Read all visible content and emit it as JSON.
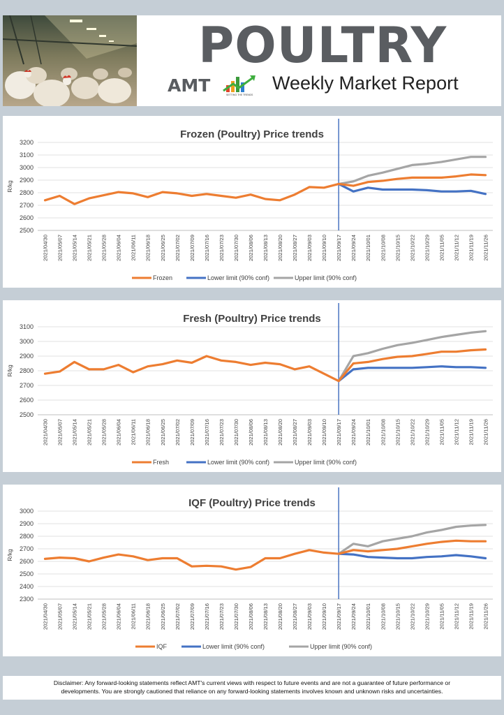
{
  "header": {
    "title": "POULTRY",
    "logo_text": "AMT",
    "logo_tagline": "SETTING THE TRENDS",
    "subtitle": "Weekly Market Report"
  },
  "disclaimer": {
    "line1": "Disclaimer:  Any forward-looking statements reflect AMT's current views with respect to future events and are not a guarantee of future performance or",
    "line2": "developments. You are strongly cautioned that reliance on any forward-looking statements involves known and unknown risks and uncertainties."
  },
  "colors": {
    "actual": "#ed7d31",
    "lower": "#4472c4",
    "upper": "#a5a5a5",
    "marker": "#2e5fb8"
  },
  "chart_data": [
    {
      "type": "line",
      "title": "Frozen (Poultry) Price trends",
      "ylabel": "R/kg",
      "ylim": [
        2500,
        3200
      ],
      "yticks": [
        2500,
        2600,
        2700,
        2800,
        2900,
        3000,
        3100,
        3200
      ],
      "x": [
        "2021/04/30",
        "2021/05/07",
        "2021/05/14",
        "2021/05/21",
        "2021/05/28",
        "2021/06/04",
        "2021/06/11",
        "2021/06/18",
        "2021/06/25",
        "2021/07/02",
        "2021/07/09",
        "2021/07/16",
        "2021/07/23",
        "2021/07/30",
        "2021/08/06",
        "2021/08/13",
        "2021/08/20",
        "2021/08/27",
        "2021/09/03",
        "2021/09/10",
        "2021/09/17",
        "2021/09/24",
        "2021/10/01",
        "2021/10/08",
        "2021/10/15",
        "2021/10/22",
        "2021/10/29",
        "2021/11/05",
        "2021/11/12",
        "2021/11/19",
        "2021/11/26"
      ],
      "forecast_start": "2021/09/17",
      "series": [
        {
          "name": "Frozen",
          "values": [
            2740,
            2775,
            2710,
            2755,
            2780,
            2805,
            2795,
            2765,
            2805,
            2795,
            2775,
            2790,
            2775,
            2760,
            2785,
            2750,
            2740,
            2785,
            2845,
            2840,
            2870,
            2855,
            2885,
            2895,
            2910,
            2920,
            2920,
            2920,
            2930,
            2945,
            2940
          ]
        },
        {
          "name": "Lower limit (90% conf)",
          "values": [
            null,
            null,
            null,
            null,
            null,
            null,
            null,
            null,
            null,
            null,
            null,
            null,
            null,
            null,
            null,
            null,
            null,
            null,
            null,
            null,
            2870,
            2810,
            2840,
            2825,
            2825,
            2825,
            2820,
            2810,
            2810,
            2815,
            2790
          ]
        },
        {
          "name": "Upper limit (90% conf)",
          "values": [
            null,
            null,
            null,
            null,
            null,
            null,
            null,
            null,
            null,
            null,
            null,
            null,
            null,
            null,
            null,
            null,
            null,
            null,
            null,
            null,
            2870,
            2890,
            2935,
            2960,
            2990,
            3020,
            3030,
            3045,
            3065,
            3085,
            3085
          ]
        }
      ]
    },
    {
      "type": "line",
      "title": "Fresh (Poultry) Price trends",
      "ylabel": "R/kg",
      "ylim": [
        2500,
        3100
      ],
      "yticks": [
        2500,
        2600,
        2700,
        2800,
        2900,
        3000,
        3100
      ],
      "x": [
        "2021/04/30",
        "2021/05/07",
        "2021/05/14",
        "2021/05/21",
        "2021/05/28",
        "2021/06/04",
        "2021/06/11",
        "2021/06/18",
        "2021/06/25",
        "2021/07/02",
        "2021/07/09",
        "2021/07/16",
        "2021/07/23",
        "2021/07/30",
        "2021/08/06",
        "2021/08/13",
        "2021/08/20",
        "2021/08/27",
        "2021/09/03",
        "2021/09/10",
        "2021/09/17",
        "2021/09/24",
        "2021/10/01",
        "2021/10/08",
        "2021/10/15",
        "2021/10/22",
        "2021/10/29",
        "2021/11/05",
        "2021/11/12",
        "2021/11/19",
        "2021/11/26"
      ],
      "forecast_start": "2021/09/17",
      "series": [
        {
          "name": "Fresh",
          "values": [
            2780,
            2795,
            2860,
            2810,
            2810,
            2840,
            2790,
            2830,
            2845,
            2870,
            2855,
            2900,
            2870,
            2860,
            2840,
            2855,
            2845,
            2810,
            2830,
            2780,
            2730,
            2850,
            2860,
            2880,
            2895,
            2900,
            2915,
            2930,
            2930,
            2940,
            2945
          ]
        },
        {
          "name": "Lower limit (90% conf)",
          "values": [
            null,
            null,
            null,
            null,
            null,
            null,
            null,
            null,
            null,
            null,
            null,
            null,
            null,
            null,
            null,
            null,
            null,
            null,
            null,
            null,
            2730,
            2810,
            2820,
            2820,
            2820,
            2820,
            2825,
            2830,
            2825,
            2825,
            2820
          ]
        },
        {
          "name": "Upper limit (90% conf)",
          "values": [
            null,
            null,
            null,
            null,
            null,
            null,
            null,
            null,
            null,
            null,
            null,
            null,
            null,
            null,
            null,
            null,
            null,
            null,
            null,
            null,
            2730,
            2900,
            2920,
            2950,
            2975,
            2990,
            3010,
            3030,
            3045,
            3060,
            3070
          ]
        }
      ]
    },
    {
      "type": "line",
      "title": "IQF (Poultry) Price trends",
      "ylabel": "R/kg",
      "ylim": [
        2300,
        3000
      ],
      "yticks": [
        2300,
        2400,
        2500,
        2600,
        2700,
        2800,
        2900,
        3000
      ],
      "x": [
        "2021/04/30",
        "2021/05/07",
        "2021/05/14",
        "2021/05/21",
        "2021/05/28",
        "2021/06/04",
        "2021/06/11",
        "2021/06/18",
        "2021/06/25",
        "2021/07/02",
        "2021/07/09",
        "2021/07/16",
        "2021/07/23",
        "2021/07/30",
        "2021/08/06",
        "2021/08/13",
        "2021/08/20",
        "2021/08/27",
        "2021/09/03",
        "2021/09/10",
        "2021/09/17",
        "2021/09/24",
        "2021/10/01",
        "2021/10/08",
        "2021/10/15",
        "2021/10/22",
        "2021/10/29",
        "2021/11/05",
        "2021/11/12",
        "2021/11/19",
        "2021/11/26"
      ],
      "forecast_start": "2021/09/17",
      "series": [
        {
          "name": "IQF",
          "values": [
            2620,
            2630,
            2625,
            2600,
            2630,
            2655,
            2640,
            2610,
            2625,
            2625,
            2560,
            2565,
            2560,
            2535,
            2555,
            2625,
            2625,
            2660,
            2690,
            2670,
            2660,
            2690,
            2680,
            2690,
            2700,
            2720,
            2740,
            2755,
            2765,
            2760,
            2760
          ]
        },
        {
          "name": "Lower limit (90% conf)",
          "values": [
            null,
            null,
            null,
            null,
            null,
            null,
            null,
            null,
            null,
            null,
            null,
            null,
            null,
            null,
            null,
            null,
            null,
            null,
            null,
            null,
            2660,
            2655,
            2635,
            2630,
            2625,
            2625,
            2635,
            2640,
            2650,
            2640,
            2625
          ]
        },
        {
          "name": "Upper limit (90% conf)",
          "values": [
            null,
            null,
            null,
            null,
            null,
            null,
            null,
            null,
            null,
            null,
            null,
            null,
            null,
            null,
            null,
            null,
            null,
            null,
            null,
            null,
            2660,
            2740,
            2720,
            2760,
            2780,
            2800,
            2830,
            2850,
            2875,
            2885,
            2890
          ]
        }
      ]
    }
  ]
}
